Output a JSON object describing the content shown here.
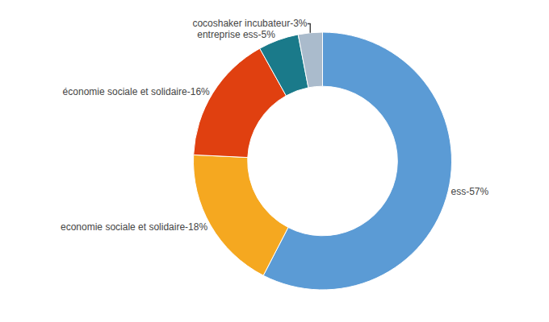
{
  "chart_data": {
    "type": "donut",
    "categories": [
      "ess-57%",
      "economie sociale et solidaire-18%",
      "économie sociale et solidaire-16%",
      "entreprise ess-5%",
      "cocoshaker incubateur-3%"
    ],
    "values": [
      57,
      18,
      16,
      5,
      3
    ],
    "colors": [
      "#5B9BD5",
      "#F5A820",
      "#E04010",
      "#1A7A8A",
      "#AABBCC"
    ],
    "data_labels": true
  }
}
